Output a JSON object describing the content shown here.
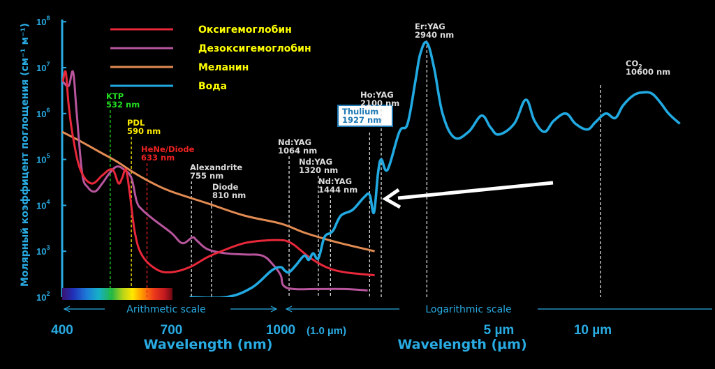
{
  "chart_data": {
    "type": "line",
    "ylabel": "Молярный коэффицент поглощения (см⁻¹ м⁻¹)",
    "y_scale": "log",
    "ylim": [
      100,
      100000000
    ],
    "y_ticks": [
      {
        "value": 100,
        "base": "10",
        "exp": "2"
      },
      {
        "value": 1000,
        "base": "10",
        "exp": "3"
      },
      {
        "value": 10000,
        "base": "10",
        "exp": "4"
      },
      {
        "value": 100000,
        "base": "10",
        "exp": "5"
      },
      {
        "value": 1000000,
        "base": "10",
        "exp": "6"
      },
      {
        "value": 10000000,
        "base": "10",
        "exp": "7"
      },
      {
        "value": 100000000,
        "base": "10",
        "exp": "8"
      }
    ],
    "x_scale": "arithmetic (400–1000 nm) then logarithmic (1.0–20 µm)",
    "x_ticks_nm": [
      {
        "value": 400,
        "label": "400"
      },
      {
        "value": 700,
        "label": "700"
      },
      {
        "value": 1000,
        "label": "1000"
      }
    ],
    "x_tick_um_start": "(1.0 µm)",
    "x_ticks_um": [
      {
        "value": 5,
        "label": "5 µm"
      },
      {
        "value": 10,
        "label": "10 µm"
      }
    ],
    "x_title_nm": "Wavelength (nm)",
    "x_title_um": "Wavelength (µm)",
    "scale_labels": [
      "Arithmetic scale",
      "Logarithmic scale"
    ],
    "series": [
      {
        "name": "Оксигемоглобин",
        "color": "#e8283a",
        "points": [
          [
            402,
            5000000
          ],
          [
            410,
            8000000
          ],
          [
            418,
            1500000
          ],
          [
            430,
            300000
          ],
          [
            450,
            60000
          ],
          [
            480,
            30000
          ],
          [
            510,
            45000
          ],
          [
            530,
            60000
          ],
          [
            542,
            55000
          ],
          [
            555,
            30000
          ],
          [
            565,
            40000
          ],
          [
            575,
            60000
          ],
          [
            585,
            20000
          ],
          [
            600,
            2500
          ],
          [
            620,
            800
          ],
          [
            660,
            400
          ],
          [
            700,
            350
          ],
          [
            750,
            450
          ],
          [
            800,
            750
          ],
          [
            850,
            1100
          ],
          [
            900,
            1500
          ],
          [
            950,
            1700
          ],
          [
            1000,
            1750
          ],
          [
            1050,
            1650
          ],
          [
            1100,
            1400
          ],
          [
            1150,
            1100
          ],
          [
            1250,
            700
          ],
          [
            1400,
            450
          ],
          [
            1600,
            350
          ],
          [
            2000,
            300
          ]
        ]
      },
      {
        "name": "Дезоксигемоглобин",
        "color": "#b8559d",
        "points": [
          [
            402,
            5000000
          ],
          [
            418,
            4000000
          ],
          [
            430,
            8000000
          ],
          [
            440,
            1000000
          ],
          [
            455,
            50000
          ],
          [
            470,
            25000
          ],
          [
            490,
            20000
          ],
          [
            510,
            30000
          ],
          [
            530,
            50000
          ],
          [
            550,
            70000
          ],
          [
            570,
            60000
          ],
          [
            590,
            40000
          ],
          [
            605,
            12000
          ],
          [
            620,
            8000
          ],
          [
            650,
            5000
          ],
          [
            700,
            2500
          ],
          [
            730,
            1500
          ],
          [
            758,
            2000
          ],
          [
            770,
            1700
          ],
          [
            800,
            1100
          ],
          [
            850,
            900
          ],
          [
            900,
            850
          ],
          [
            950,
            800
          ],
          [
            980,
            500
          ],
          [
            1000,
            300
          ],
          [
            1020,
            180
          ],
          [
            1100,
            150
          ],
          [
            1300,
            150
          ],
          [
            1600,
            150
          ],
          [
            1900,
            140
          ]
        ]
      },
      {
        "name": "Меланин",
        "color": "#e28b52",
        "points": [
          [
            400,
            400000
          ],
          [
            450,
            250000
          ],
          [
            500,
            150000
          ],
          [
            550,
            90000
          ],
          [
            600,
            50000
          ],
          [
            650,
            30000
          ],
          [
            700,
            20000
          ],
          [
            800,
            11000
          ],
          [
            900,
            6000
          ],
          [
            1000,
            4000
          ],
          [
            1200,
            2500
          ],
          [
            1500,
            1600
          ],
          [
            2000,
            1000
          ]
        ]
      },
      {
        "name": "Вода",
        "color": "#21a9e1",
        "points": [
          [
            750,
            100
          ],
          [
            850,
            100
          ],
          [
            920,
            160
          ],
          [
            975,
            380
          ],
          [
            1000,
            450
          ],
          [
            1030,
            380
          ],
          [
            1064,
            350
          ],
          [
            1120,
            500
          ],
          [
            1190,
            800
          ],
          [
            1230,
            650
          ],
          [
            1270,
            900
          ],
          [
            1320,
            700
          ],
          [
            1380,
            2000
          ],
          [
            1444,
            2500
          ],
          [
            1480,
            3000
          ],
          [
            1560,
            6000
          ],
          [
            1700,
            8000
          ],
          [
            1850,
            15000
          ],
          [
            1927,
            17000
          ],
          [
            1990,
            7000
          ],
          [
            2050,
            50000
          ],
          [
            2100,
            100000
          ],
          [
            2200,
            60000
          ],
          [
            2400,
            400000
          ],
          [
            2550,
            600000
          ],
          [
            2700,
            5000000
          ],
          [
            2800,
            20000000
          ],
          [
            2940,
            35000000
          ],
          [
            3100,
            10000000
          ],
          [
            3300,
            1000000
          ],
          [
            3600,
            300000
          ],
          [
            4000,
            400000
          ],
          [
            4400,
            900000
          ],
          [
            4700,
            500000
          ],
          [
            5000,
            350000
          ],
          [
            5600,
            600000
          ],
          [
            6100,
            2000000
          ],
          [
            6500,
            700000
          ],
          [
            7000,
            400000
          ],
          [
            7500,
            700000
          ],
          [
            8200,
            1000000
          ],
          [
            8800,
            600000
          ],
          [
            9600,
            450000
          ],
          [
            10200,
            650000
          ],
          [
            11000,
            1000000
          ],
          [
            11800,
            800000
          ],
          [
            12500,
            1500000
          ],
          [
            13500,
            2500000
          ],
          [
            14500,
            2900000
          ],
          [
            15500,
            2700000
          ],
          [
            16500,
            1700000
          ],
          [
            17500,
            1000000
          ],
          [
            19000,
            600000
          ]
        ]
      }
    ],
    "lasers": [
      {
        "name": "KTP",
        "wl_text": "532 nm",
        "nm": 532,
        "color": "#22dd22"
      },
      {
        "name": "PDL",
        "wl_text": "590 nm",
        "nm": 590,
        "color": "#ffee00"
      },
      {
        "name": "HeNe/Diode",
        "wl_text": "633 nm",
        "nm": 633,
        "color": "#ee2222"
      },
      {
        "name": "Alexandrite",
        "wl_text": "755 nm",
        "nm": 755,
        "color": "#dddddd"
      },
      {
        "name": "Diode",
        "wl_text": "810 nm",
        "nm": 810,
        "color": "#dddddd"
      },
      {
        "name": "Nd:YAG",
        "wl_text": "1064 nm",
        "nm": 1064,
        "color": "#dddddd"
      },
      {
        "name": "Nd:YAG",
        "wl_text": "1320 nm",
        "nm": 1320,
        "color": "#dddddd"
      },
      {
        "name": "Nd:YAG",
        "wl_text": "1444 nm",
        "nm": 1444,
        "color": "#dddddd"
      },
      {
        "name": "Thulium",
        "wl_text": "1927 nm",
        "nm": 1927,
        "color": "#1d78b4",
        "boxed": true
      },
      {
        "name": "Ho:YAG",
        "wl_text": "2100 nm",
        "nm": 2100,
        "color": "#dddddd"
      },
      {
        "name": "Er:YAG",
        "wl_text": "2940 nm",
        "nm": 2940,
        "color": "#dddddd"
      },
      {
        "name": "CO",
        "name_sub": "2",
        "wl_text": "10600 nm",
        "nm": 10600,
        "color": "#dddddd"
      }
    ],
    "legend_position": "top-left"
  }
}
